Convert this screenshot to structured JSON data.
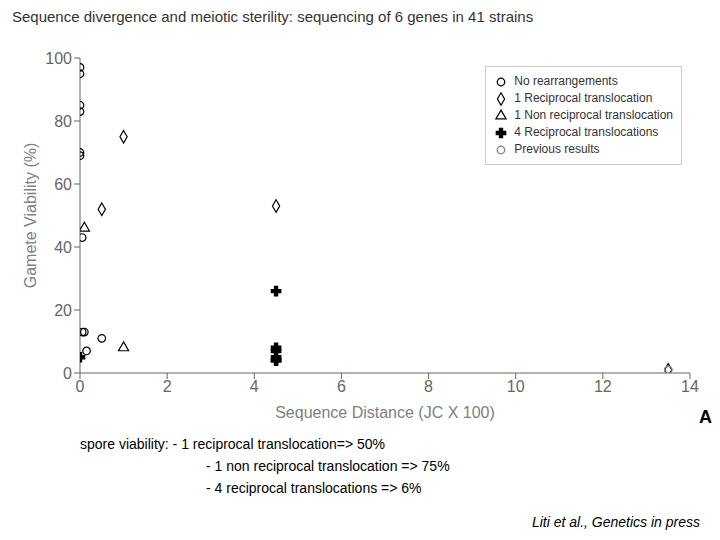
{
  "chart_data": {
    "type": "scatter",
    "title": "Sequence divergence and meiotic sterility: sequencing of 6 genes in 41 strains",
    "xlabel": "Sequence Distance (JC X 100)",
    "ylabel": "Gamete Viability (%)",
    "xlim": [
      0,
      14
    ],
    "ylim": [
      0,
      100
    ],
    "xticks": [
      0,
      2,
      4,
      6,
      8,
      10,
      12,
      14
    ],
    "yticks": [
      0,
      20,
      40,
      60,
      80,
      100
    ],
    "grid": false,
    "legend": "upper right",
    "annotations": [
      "A",
      "spore viability:  - 1 reciprocal translocation=> 50%",
      "- 1 non reciprocal translocation => 75%",
      "- 4 reciprocal translocations => 6%",
      "Liti et al., Genetics in press"
    ],
    "series": [
      {
        "name": "No rearrangements",
        "color": "#000000",
        "marker": "circle",
        "x": [
          0.0,
          0.0,
          0.0,
          0.0,
          0.0,
          0.0,
          0.05,
          0.05,
          0.1,
          0.15,
          0.5
        ],
        "values": [
          97,
          95,
          85,
          83,
          70,
          69,
          43,
          13,
          13,
          7,
          11
        ]
      },
      {
        "name": "1 Reciprocal translocation",
        "color": "#000000",
        "marker": "diamond",
        "x": [
          0.5,
          1.0,
          4.5,
          13.5
        ],
        "values": [
          52,
          75,
          53,
          1
        ]
      },
      {
        "name": "1 Non reciprocal translocation",
        "color": "#000000",
        "marker": "triangle",
        "x": [
          0.1,
          1.0
        ],
        "values": [
          46,
          8
        ]
      },
      {
        "name": "4 Reciprocal translocations",
        "color": "#000000",
        "marker": "cross",
        "x": [
          0.0,
          4.5,
          4.5,
          4.5,
          4.5,
          4.5,
          4.5
        ],
        "values": [
          5,
          26,
          8,
          7,
          5,
          4,
          4
        ]
      },
      {
        "name": "Previous results",
        "color": "#808080",
        "marker": "circle",
        "x": [
          13.5
        ],
        "values": [
          1
        ]
      }
    ]
  }
}
